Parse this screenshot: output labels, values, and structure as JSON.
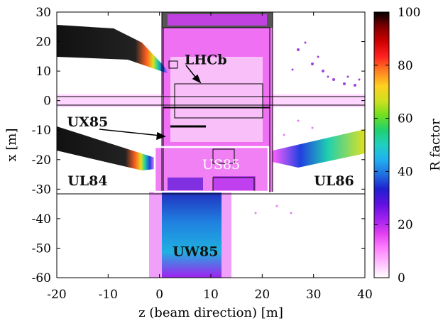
{
  "chart_data": {
    "type": "heatmap",
    "title": "",
    "xlabel": "z (beam direction) [m]",
    "ylabel": "x [m]",
    "xlim": [
      -20,
      40
    ],
    "ylim": [
      -60,
      30
    ],
    "xticks": [
      -20,
      -10,
      0,
      10,
      20,
      30,
      40
    ],
    "yticks": [
      30,
      20,
      10,
      0,
      -10,
      -20,
      -30,
      -40,
      -50,
      -60
    ],
    "colorbar": {
      "label": "R factor",
      "range": [
        0,
        100
      ],
      "ticks": [
        100,
        80,
        60,
        40,
        20,
        0
      ],
      "stops": [
        "#ffffff",
        "#ffc0ff",
        "#ff80ff",
        "#e040f0",
        "#a020f0",
        "#6010e0",
        "#2020d0",
        "#2070e0",
        "#20b0f0",
        "#20d0c0",
        "#20d070",
        "#70e020",
        "#d0e020",
        "#ffd020",
        "#ff8020",
        "#ff2020",
        "#d00000",
        "#800000",
        "#000000"
      ]
    },
    "annotations": [
      {
        "label": "LHCb",
        "x": 9,
        "y": 14
      },
      {
        "label": "UX85",
        "x": -14,
        "y": -7
      },
      {
        "label": "US85",
        "x": 12,
        "y": -21.5
      },
      {
        "label": "UL84",
        "x": -14,
        "y": -27
      },
      {
        "label": "UL86",
        "x": 34,
        "y": -27
      },
      {
        "label": "UW85",
        "x": 7,
        "y": -51
      }
    ]
  }
}
